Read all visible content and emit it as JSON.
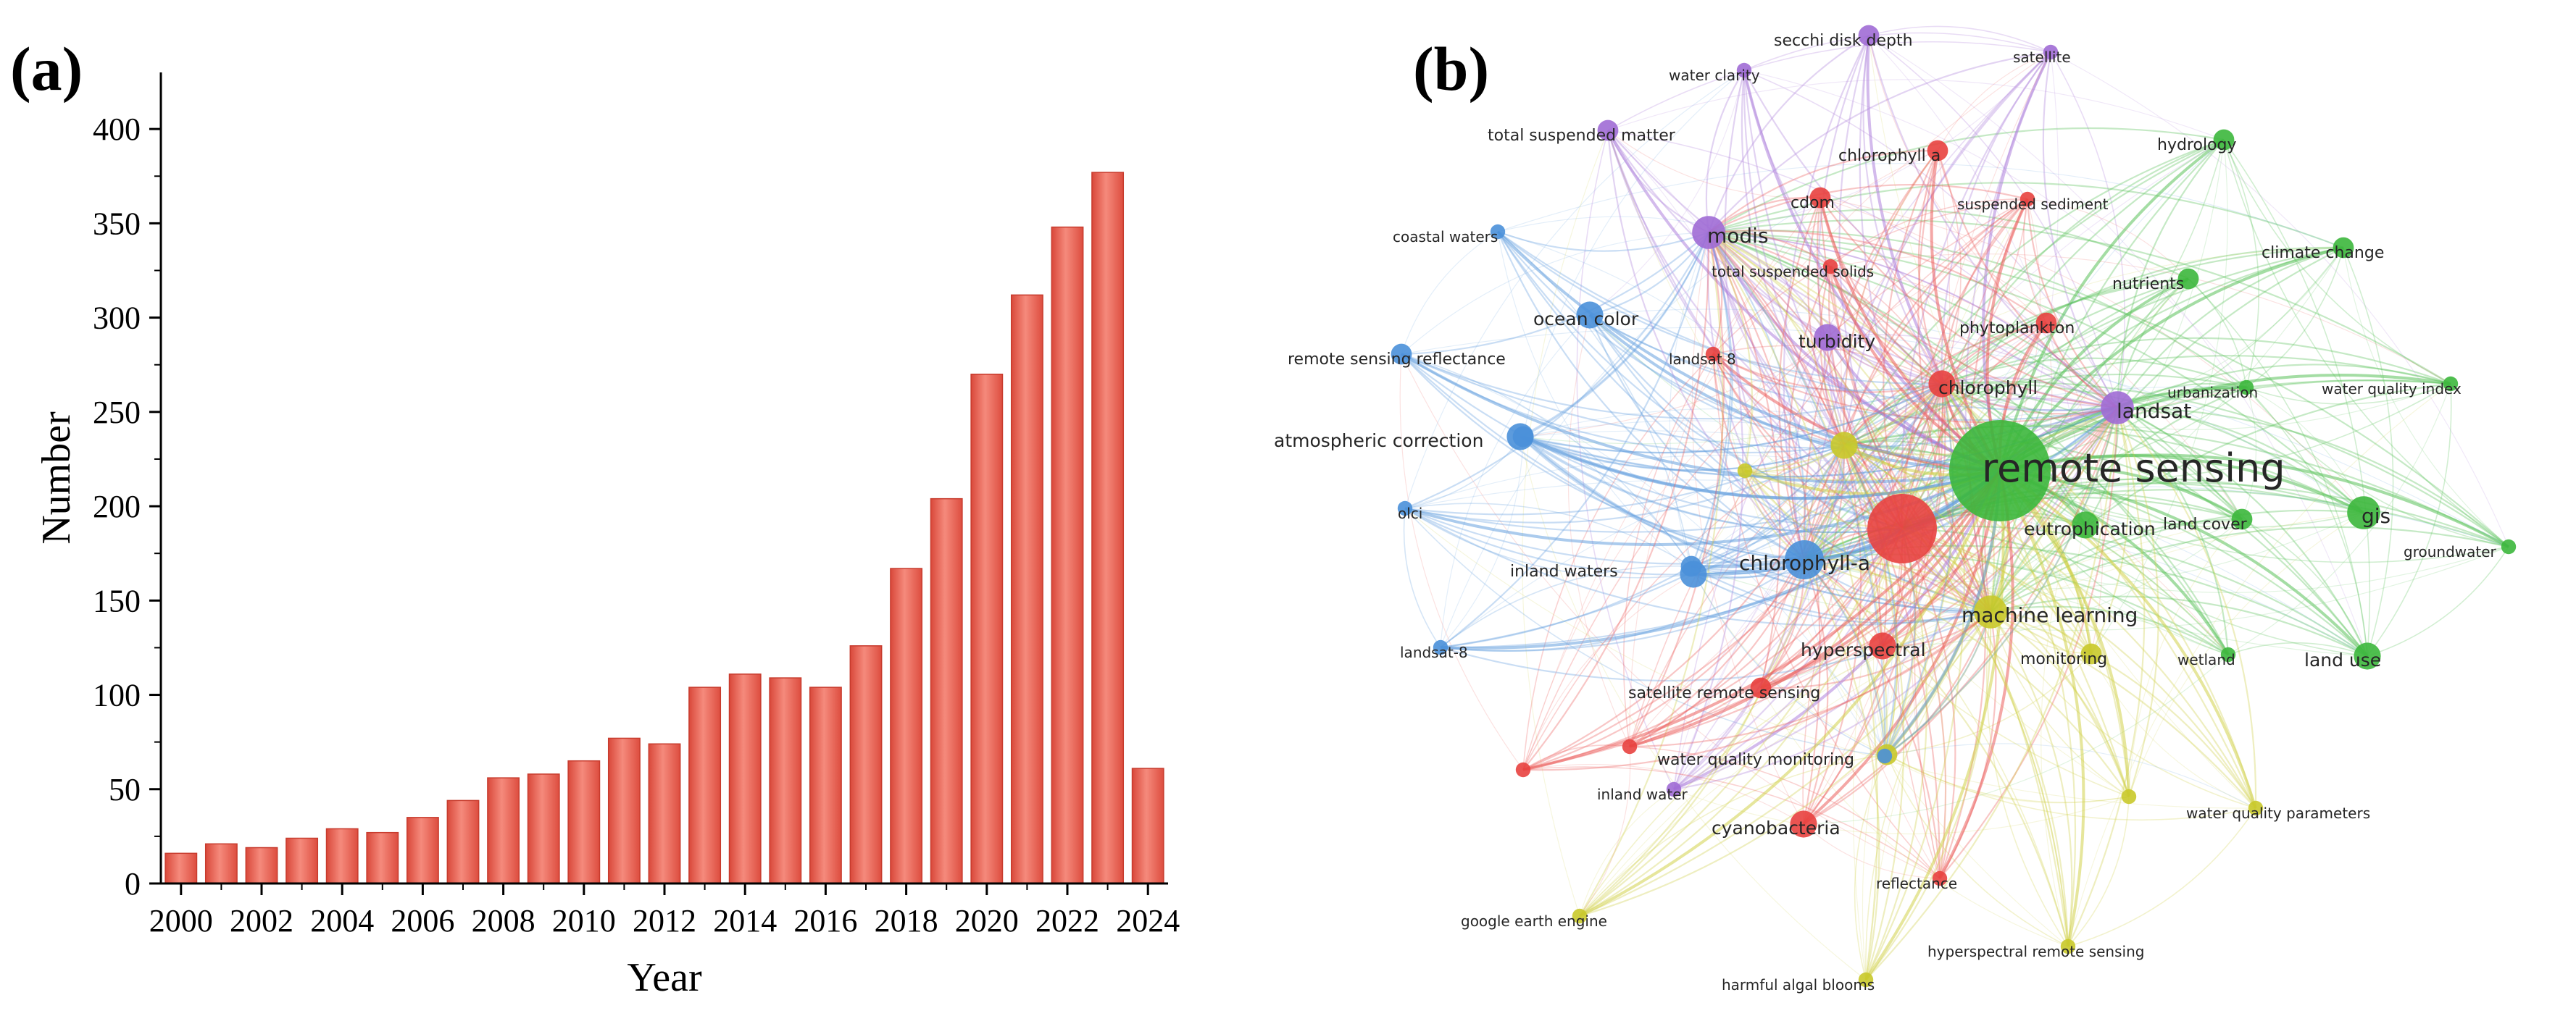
{
  "panel_a": {
    "label": "(a)"
  },
  "panel_b": {
    "label": "(b)"
  },
  "chart_data": [
    {
      "type": "bar",
      "title": "",
      "xlabel": "Year",
      "ylabel": "Number",
      "categories": [
        "2000",
        "2001",
        "2002",
        "2003",
        "2004",
        "2005",
        "2006",
        "2007",
        "2008",
        "2009",
        "2010",
        "2011",
        "2012",
        "2013",
        "2014",
        "2015",
        "2016",
        "2017",
        "2018",
        "2019",
        "2020",
        "2021",
        "2022",
        "2023",
        "2024"
      ],
      "values": [
        16,
        21,
        19,
        24,
        29,
        27,
        35,
        44,
        56,
        58,
        65,
        77,
        74,
        104,
        111,
        109,
        104,
        126,
        167,
        204,
        270,
        312,
        348,
        377,
        61
      ],
      "ylim": [
        0,
        430
      ],
      "yticks": [
        0,
        50,
        100,
        150,
        200,
        250,
        300,
        350,
        400
      ],
      "xtick_labels": [
        "2000",
        "2002",
        "2004",
        "2006",
        "2008",
        "2010",
        "2012",
        "2014",
        "2016",
        "2018",
        "2020",
        "2022",
        "2024"
      ],
      "bar_color": "#ea5b4d",
      "grid": false
    },
    {
      "type": "network",
      "title": "",
      "cluster_colors": {
        "red": "#e8413f",
        "green": "#3cb73c",
        "blue": "#4a90d9",
        "yellow": "#c9c92a",
        "purple": "#a06cd5"
      },
      "nodes": [
        {
          "term": "remote sensing",
          "cluster": "green",
          "weight": 10
        },
        {
          "term": "",
          "cluster": "red",
          "weight": 7
        },
        {
          "term": "chlorophyll-a",
          "cluster": "blue",
          "weight": 5
        },
        {
          "term": "landsat",
          "cluster": "purple",
          "weight": 4
        },
        {
          "term": "modis",
          "cluster": "purple",
          "weight": 4
        },
        {
          "term": "turbidity",
          "cluster": "purple",
          "weight": 3
        },
        {
          "term": "machine learning",
          "cluster": "yellow",
          "weight": 4
        },
        {
          "term": "eutrophication",
          "cluster": "green",
          "weight": 3
        },
        {
          "term": "gis",
          "cluster": "green",
          "weight": 4
        },
        {
          "term": "chlorophyll",
          "cluster": "red",
          "weight": 3
        },
        {
          "term": "ocean color",
          "cluster": "blue",
          "weight": 3
        },
        {
          "term": "atmospheric correction",
          "cluster": "blue",
          "weight": 3
        },
        {
          "term": "inland waters",
          "cluster": "blue",
          "weight": 2
        },
        {
          "term": "hyperspectral",
          "cluster": "red",
          "weight": 3
        },
        {
          "term": "satellite remote sensing",
          "cluster": "red",
          "weight": 2
        },
        {
          "term": "water quality monitoring",
          "cluster": "yellow",
          "weight": 2
        },
        {
          "term": "cyanobacteria",
          "cluster": "red",
          "weight": 3
        },
        {
          "term": "monitoring",
          "cluster": "yellow",
          "weight": 2
        },
        {
          "term": "land use",
          "cluster": "green",
          "weight": 3
        },
        {
          "term": "land cover",
          "cluster": "green",
          "weight": 2
        },
        {
          "term": "wetland",
          "cluster": "green",
          "weight": 1
        },
        {
          "term": "urbanization",
          "cluster": "green",
          "weight": 1
        },
        {
          "term": "nutrients",
          "cluster": "green",
          "weight": 2
        },
        {
          "term": "climate change",
          "cluster": "green",
          "weight": 2
        },
        {
          "term": "hydrology",
          "cluster": "green",
          "weight": 2
        },
        {
          "term": "water quality index",
          "cluster": "green",
          "weight": 1
        },
        {
          "term": "groundwater",
          "cluster": "green",
          "weight": 1
        },
        {
          "term": "satellite",
          "cluster": "purple",
          "weight": 1
        },
        {
          "term": "secchi disk depth",
          "cluster": "purple",
          "weight": 2
        },
        {
          "term": "water clarity",
          "cluster": "purple",
          "weight": 1
        },
        {
          "term": "total suspended matter",
          "cluster": "purple",
          "weight": 2
        },
        {
          "term": "chlorophyll a",
          "cluster": "red",
          "weight": 2
        },
        {
          "term": "cdom",
          "cluster": "red",
          "weight": 2
        },
        {
          "term": "suspended sediment",
          "cluster": "red",
          "weight": 1
        },
        {
          "term": "total suspended solids",
          "cluster": "red",
          "weight": 1
        },
        {
          "term": "phytoplankton",
          "cluster": "red",
          "weight": 2
        },
        {
          "term": "landsat 8",
          "cluster": "red",
          "weight": 1
        },
        {
          "term": "coastal waters",
          "cluster": "blue",
          "weight": 1
        },
        {
          "term": "remote sensing reflectance",
          "cluster": "blue",
          "weight": 2
        },
        {
          "term": "olci",
          "cluster": "blue",
          "weight": 1
        },
        {
          "term": "landsat-8",
          "cluster": "blue",
          "weight": 1
        },
        {
          "term": "inland water",
          "cluster": "purple",
          "weight": 1
        },
        {
          "term": "reflectance",
          "cluster": "red",
          "weight": 1
        },
        {
          "term": "google earth engine",
          "cluster": "yellow",
          "weight": 1
        },
        {
          "term": "harmful algal blooms",
          "cluster": "yellow",
          "weight": 1
        },
        {
          "term": "hyperspectral remote sensing",
          "cluster": "yellow",
          "weight": 1
        },
        {
          "term": "water quality parameters",
          "cluster": "yellow",
          "weight": 1
        },
        {
          "term": "",
          "cluster": "yellow",
          "weight": 3
        },
        {
          "term": "",
          "cluster": "yellow",
          "weight": 1
        },
        {
          "term": "",
          "cluster": "blue",
          "weight": 3
        },
        {
          "term": "",
          "cluster": "blue",
          "weight": 2
        },
        {
          "term": "",
          "cluster": "red",
          "weight": 1
        },
        {
          "term": "",
          "cluster": "blue",
          "weight": 1
        },
        {
          "term": "",
          "cluster": "red",
          "weight": 1
        },
        {
          "term": "",
          "cluster": "yellow",
          "weight": 1
        }
      ]
    }
  ]
}
